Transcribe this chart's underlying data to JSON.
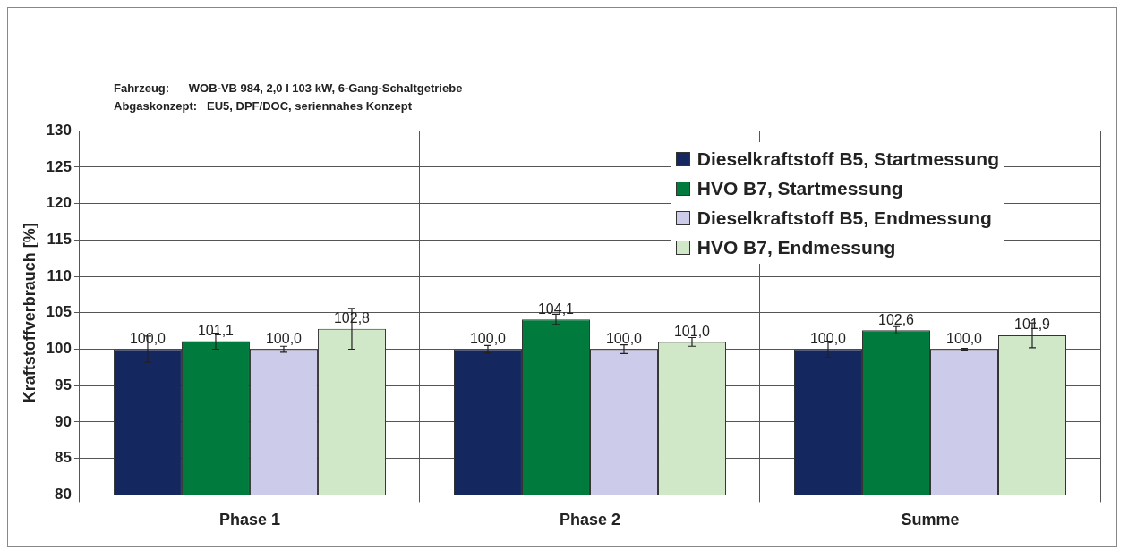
{
  "chart_data": {
    "type": "bar",
    "ylabel": "Kraftstoffverbrauch [%]",
    "annotations": [
      "Fahrzeug:      WOB-VB 984, 2,0 l 103 kW, 6-Gang-Schaltgetriebe",
      "Abgaskonzept:   EU5, DPF/DOC, seriennahes Konzept"
    ],
    "categories": [
      "Phase 1",
      "Phase 2",
      "Summe"
    ],
    "series": [
      {
        "name": "Dieselkraftstoff B5, Startmessung",
        "color": "#14275e",
        "values": [
          100.0,
          100.0,
          100.0
        ],
        "errors": [
          1.8,
          0.5,
          1.1
        ],
        "value_labels": [
          "100,0",
          "100,0",
          "100,0"
        ]
      },
      {
        "name": "HVO B7, Startmessung",
        "color": "#007a3d",
        "values": [
          101.1,
          104.1,
          102.6
        ],
        "errors": [
          1.1,
          0.7,
          0.5
        ],
        "value_labels": [
          "101,1",
          "104,1",
          "102,6"
        ]
      },
      {
        "name": "Dieselkraftstoff B5, Endmessung",
        "color": "#ccccea",
        "values": [
          100.0,
          100.0,
          100.0
        ],
        "errors": [
          0.4,
          0.6,
          0.1
        ],
        "value_labels": [
          "100,0",
          "100,0",
          "100,0"
        ]
      },
      {
        "name": "HVO B7, Endmessung",
        "color": "#d0e8c8",
        "values": [
          102.8,
          101.0,
          101.9
        ],
        "errors": [
          2.8,
          0.6,
          1.7
        ],
        "value_labels": [
          "102,8",
          "101,0",
          "101,9"
        ]
      }
    ],
    "ylim": [
      80,
      130
    ],
    "yticks": [
      80,
      85,
      90,
      95,
      100,
      105,
      110,
      115,
      120,
      125,
      130
    ],
    "grid": true,
    "legend": "top right"
  }
}
